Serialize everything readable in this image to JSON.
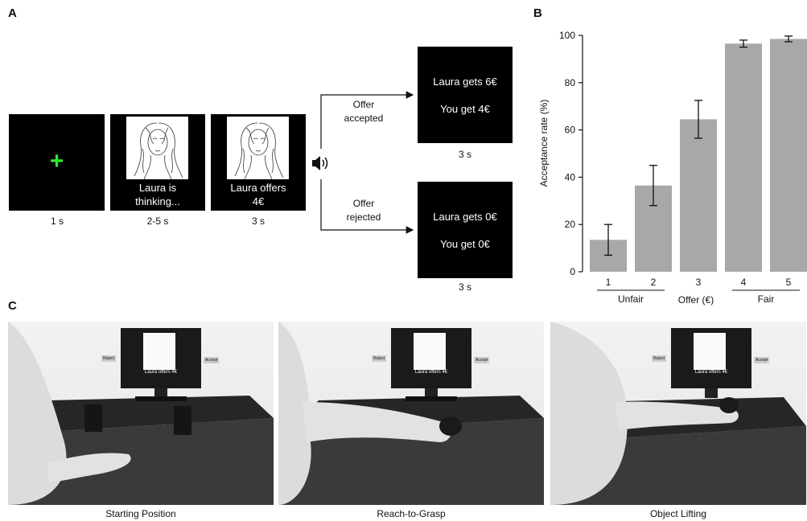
{
  "panelA": {
    "letter": "A",
    "fixation": {
      "symbol": "+",
      "duration": "1 s"
    },
    "thinking": {
      "line1": "Laura is",
      "line2": "thinking...",
      "duration": "2-5 s"
    },
    "offer": {
      "line1": "Laura offers",
      "line2": "4€",
      "duration": "3 s"
    },
    "accepted": {
      "label_line1": "Offer",
      "label_line2": "accepted",
      "line1": "Laura gets 6€",
      "line2": "You get 4€",
      "duration": "3 s"
    },
    "rejected": {
      "label_line1": "Offer",
      "label_line2": "rejected",
      "line1": "Laura gets 0€",
      "line2": "You get 0€",
      "duration": "3 s"
    },
    "icon": "speaker-icon"
  },
  "panelB": {
    "letter": "B"
  },
  "chart_data": {
    "type": "bar",
    "categories": [
      "1",
      "2",
      "3",
      "4",
      "5"
    ],
    "values": [
      13.5,
      36.5,
      64.5,
      96.5,
      98.5
    ],
    "errors": [
      6.5,
      8.5,
      8,
      1.5,
      1.2
    ],
    "xlabel": "Offer (€)",
    "ylabel": "Acceptance rate (%)",
    "ylim": [
      0,
      100
    ],
    "yticks": [
      "0",
      "20",
      "40",
      "60",
      "80",
      "100"
    ],
    "groups": [
      {
        "label": "Unfair",
        "members": [
          "1",
          "2"
        ]
      },
      {
        "label": "Fair",
        "members": [
          "4",
          "5"
        ]
      }
    ],
    "bar_color": "#a8a8a8"
  },
  "panelC": {
    "letter": "C",
    "captions": [
      "Starting Position",
      "Reach-to-Grasp",
      "Object Lifting"
    ],
    "monitor_text": "Laura offers 4€",
    "sign_left": "Reject",
    "sign_right": "Accept"
  }
}
